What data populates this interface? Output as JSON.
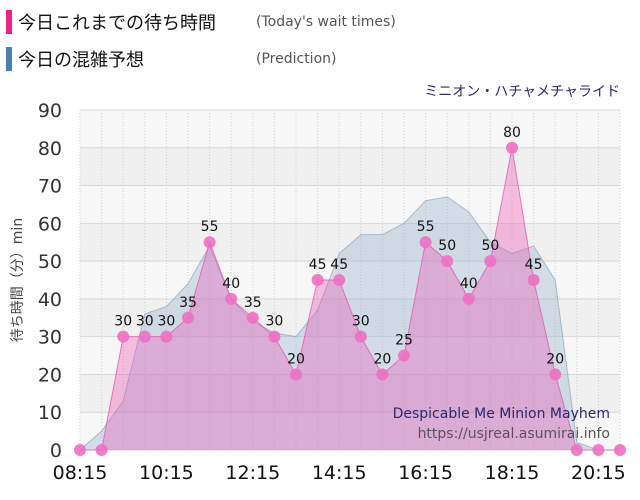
{
  "legend": {
    "today": {
      "label": "今日これまでの待ち時間",
      "sub": "(Today's wait times)",
      "color": "#ee2288"
    },
    "prediction": {
      "label": "今日の混雑予想",
      "sub": "(Prediction)",
      "color": "#4a7fb0"
    }
  },
  "ride_name": "ミニオン・ハチャメチャライド",
  "chart_data": {
    "type": "area",
    "ylabel": "待ち時間（分）min",
    "ylim": [
      0,
      90
    ],
    "yticks": [
      0,
      10,
      20,
      30,
      40,
      50,
      60,
      70,
      80,
      90
    ],
    "x_start": "08:15",
    "x_step_minutes": 30,
    "xtick_labels": [
      "08:15",
      "10:15",
      "12:15",
      "14:15",
      "16:15",
      "18:15",
      "20:15"
    ],
    "grid": true,
    "series": [
      {
        "name": "今日これまでの待ち時間",
        "x": [
          "08:15",
          "08:45",
          "09:15",
          "09:45",
          "10:15",
          "10:45",
          "11:15",
          "11:45",
          "12:15",
          "12:45",
          "13:15",
          "13:45",
          "14:15",
          "14:45",
          "15:15",
          "15:45",
          "16:15",
          "16:45",
          "17:15",
          "17:45",
          "18:15",
          "18:45",
          "19:15",
          "19:45",
          "20:15",
          "20:45"
        ],
        "values": [
          0,
          0,
          30,
          30,
          30,
          35,
          55,
          40,
          35,
          30,
          20,
          45,
          45,
          30,
          20,
          25,
          55,
          50,
          40,
          50,
          80,
          45,
          20,
          0,
          0,
          0
        ],
        "labels": [
          "",
          "",
          "30",
          "30",
          "30",
          "35",
          "55",
          "40",
          "35",
          "30",
          "20",
          "45",
          "45",
          "30",
          "20",
          "25",
          "55",
          "50",
          "40",
          "50",
          "80",
          "45",
          "20",
          "",
          "",
          ""
        ]
      },
      {
        "name": "今日の混雑予想",
        "x": [
          "08:15",
          "08:45",
          "09:15",
          "09:45",
          "10:15",
          "10:45",
          "11:15",
          "11:45",
          "12:15",
          "12:45",
          "13:15",
          "13:45",
          "14:15",
          "14:45",
          "15:15",
          "15:45",
          "16:15",
          "16:45",
          "17:15",
          "17:45",
          "18:15",
          "18:45",
          "19:15",
          "19:45",
          "20:15",
          "20:45"
        ],
        "values": [
          0,
          5,
          13,
          36,
          38,
          44,
          54,
          40,
          34,
          31,
          30,
          37,
          52,
          57,
          57,
          60,
          66,
          67,
          63,
          55,
          52,
          54,
          45,
          2,
          0,
          0
        ]
      }
    ],
    "annotations": {
      "title_en": "Despicable Me Minion Mayhem",
      "url": "https://usjreal.asumirai.info"
    }
  }
}
